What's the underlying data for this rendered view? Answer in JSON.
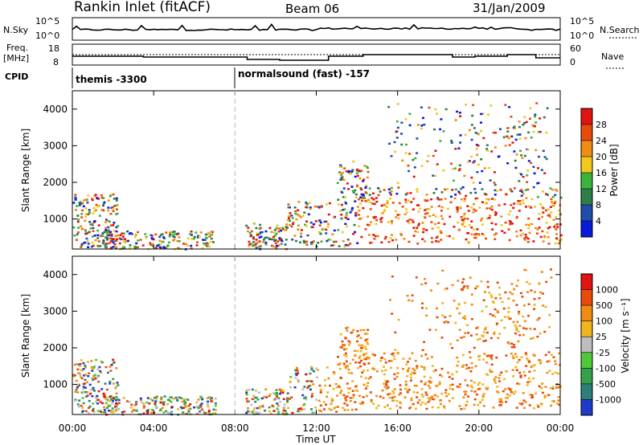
{
  "header": {
    "station": "Rankin Inlet (fitACF)",
    "beam": "Beam 06",
    "date": "31/Jan/2009"
  },
  "nsky_panel": {
    "left_label": "N.Sky",
    "left_ticks": [
      "10^5",
      "10^0"
    ],
    "right_label": "N.Search",
    "right_ticks": [
      "10^5",
      "10^0"
    ]
  },
  "freq_panel": {
    "left_label_line1": "Freq.",
    "left_label_line2": "[MHz]",
    "left_ticks": [
      "18",
      "8"
    ],
    "right_label": "Nave",
    "right_ticks": [
      "60",
      "0"
    ]
  },
  "cpid_panel": {
    "label": "CPID",
    "segments": [
      {
        "name": "themis -3300",
        "start_hour": 0
      },
      {
        "name": "normalsound (fast) -157",
        "start_hour": 8
      }
    ]
  },
  "chart_data": [
    {
      "type": "heatmap",
      "panel": "power",
      "ylabel": "Slant Range [km]",
      "y_ticks": [
        1000,
        2000,
        3000,
        4000
      ],
      "ylim": [
        180,
        4500
      ],
      "xlim": [
        0,
        24
      ],
      "colorbar": {
        "label": "Power [dB]",
        "ticks": [
          "28",
          "24",
          "20",
          "16",
          "12",
          "8",
          "4"
        ],
        "colors": [
          "#0a1adc",
          "#1e4ea8",
          "#2e7e4a",
          "#3cb43c",
          "#f0c81e",
          "#f08c14",
          "#e84a0c",
          "#e01410"
        ]
      }
    },
    {
      "type": "heatmap",
      "panel": "velocity",
      "ylabel": "Slant Range [km]",
      "y_ticks": [
        1000,
        2000,
        3000,
        4000
      ],
      "ylim": [
        180,
        4500
      ],
      "xlim": [
        0,
        24
      ],
      "xlabel": "Time UT",
      "x_ticks": [
        "00:00",
        "04:00",
        "08:00",
        "12:00",
        "16:00",
        "20:00",
        "00:00"
      ],
      "colorbar": {
        "label": "Velocity [m s⁻¹]",
        "ticks": [
          "1000",
          "500",
          "100",
          "25",
          "-25",
          "-100",
          "-500",
          "-1000"
        ],
        "colors": [
          "#1e3cc8",
          "#2e7e7a",
          "#34a04a",
          "#50c83a",
          "#bebebe",
          "#f0b41e",
          "#f08c14",
          "#e84a0c",
          "#e01410"
        ]
      }
    }
  ]
}
